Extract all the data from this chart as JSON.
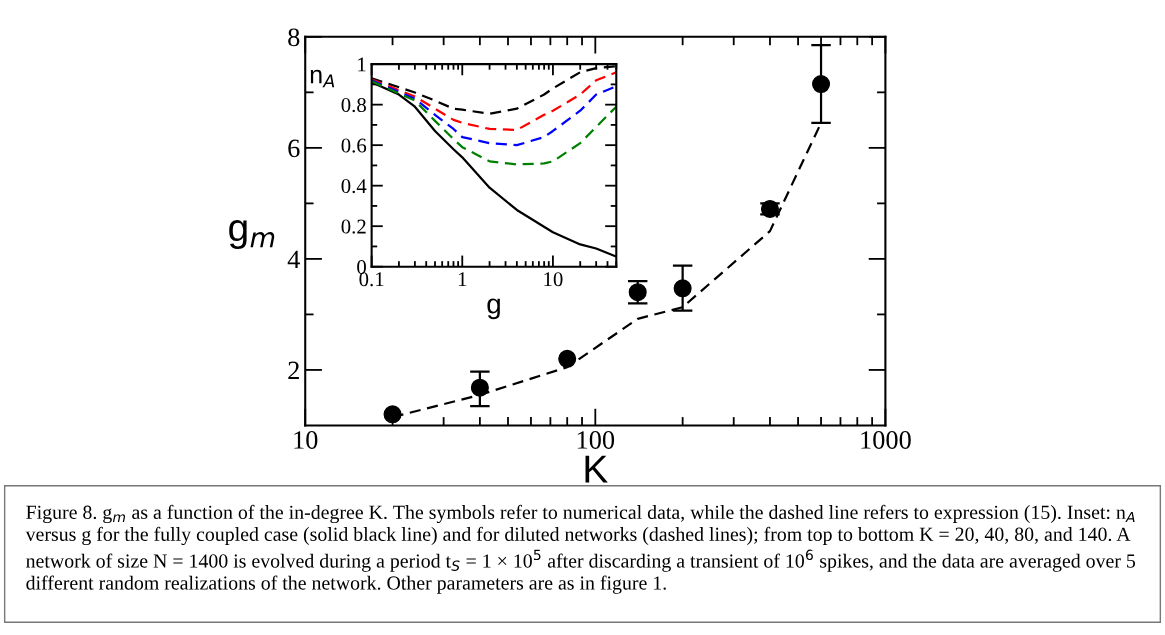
{
  "chart_data": [
    {
      "type": "line",
      "xlabel": "K",
      "ylabel": "g$_{m}$",
      "log": "x",
      "xlim": [
        10,
        1000
      ],
      "xticks": [
        10,
        100,
        1000
      ],
      "ylim": [
        1,
        8
      ],
      "yticks": [
        {
          "value": 2,
          "label": "2"
        },
        {
          "value": 3,
          "label": null
        },
        {
          "value": 4,
          "label": "4"
        },
        {
          "value": 5,
          "label": null
        },
        {
          "value": 6,
          "label": "6"
        },
        {
          "value": 7,
          "label": null
        },
        {
          "value": 8,
          "label": "8"
        }
      ],
      "grid": false,
      "legend": false,
      "series": [
        {
          "type": "scatter",
          "color": "#000000",
          "marker": "circle",
          "x": [
            20,
            40,
            80,
            140,
            200,
            400,
            600
          ],
          "values": [
            1.2,
            1.68,
            2.2,
            3.4,
            3.47,
            4.9,
            7.15
          ],
          "errors": [
            null,
            [
              1.35,
              1.97
            ],
            null,
            [
              3.2,
              3.6
            ],
            [
              3.07,
              3.88
            ],
            [
              4.8,
              5.0
            ],
            [
              6.45,
              7.85
            ]
          ]
        },
        {
          "type": "line",
          "color": "#000000",
          "line_style": "dashed",
          "marker": "none",
          "x": [
            20,
            40,
            80,
            140,
            200,
            400,
            600
          ],
          "values": [
            1.15,
            1.55,
            2.05,
            2.92,
            3.13,
            4.5,
            6.45
          ]
        }
      ],
      "annotations": [
        "Figure 8. g$_{m}$ as a function of the in-degree K. The symbols refer to numerical data, while the dashed line refers to expression (15). Inset: n$_{A}$ versus g for the fully coupled case (solid black line) and for diluted networks (dashed lines); from top to bottom K = 20, 40, 80, and 140. A network of size N = 1400 is evolved during a period t$_{S}$ = 1 × 10$^{5}$ after discarding a transient of 10$^{6}$ spikes, and the data are averaged over 5 different random realizations of the network. Other parameters are as in figure 1."
      ]
    },
    {
      "type": "line",
      "xlabel": "g",
      "ylabel": "n$_{A}$",
      "log": "x",
      "xlim": [
        0.1,
        50
      ],
      "xticks": [
        0.1,
        1,
        10
      ],
      "ylim": [
        0,
        1
      ],
      "yticks": [
        0,
        {
          "value": 0.1,
          "label": null
        },
        0.2,
        {
          "value": 0.3,
          "label": null
        },
        0.4,
        {
          "value": 0.5,
          "label": null
        },
        0.6,
        {
          "value": 0.7,
          "label": null
        },
        0.8,
        {
          "value": 0.9,
          "label": null
        },
        1
      ],
      "grid": false,
      "legend": false,
      "marker": "none",
      "series": [
        {
          "color": "#000000",
          "line_style": "solid",
          "x": [
            0.1,
            0.2,
            0.3,
            0.5,
            0.8,
            1,
            2,
            4,
            10,
            20,
            30,
            50
          ],
          "values": [
            0.91,
            0.85,
            0.79,
            0.67,
            0.58,
            0.54,
            0.39,
            0.28,
            0.17,
            0.11,
            0.09,
            0.05
          ]
        },
        {
          "color": "#000000",
          "line_style": "dashed",
          "x": [
            0.1,
            0.3,
            0.5,
            0.8,
            1,
            2,
            4,
            8,
            10,
            20,
            30,
            50
          ],
          "values": [
            0.93,
            0.86,
            0.82,
            0.78,
            0.775,
            0.755,
            0.78,
            0.85,
            0.88,
            0.96,
            0.98,
            0.99
          ]
        },
        {
          "color": "#ff0000",
          "line_style": "dashed",
          "x": [
            0.1,
            0.3,
            0.5,
            0.8,
            1,
            2,
            4,
            8,
            10,
            20,
            30,
            50
          ],
          "values": [
            0.925,
            0.84,
            0.78,
            0.725,
            0.71,
            0.68,
            0.675,
            0.75,
            0.77,
            0.85,
            0.92,
            0.96
          ]
        },
        {
          "color": "#0000ff",
          "line_style": "dashed",
          "x": [
            0.1,
            0.3,
            0.5,
            0.8,
            1,
            2,
            4,
            8,
            10,
            20,
            30,
            50
          ],
          "values": [
            0.92,
            0.83,
            0.75,
            0.68,
            0.64,
            0.61,
            0.6,
            0.64,
            0.67,
            0.77,
            0.85,
            0.89
          ]
        },
        {
          "color": "#008000",
          "line_style": "dashed",
          "x": [
            0.1,
            0.3,
            0.5,
            0.8,
            1,
            2,
            4,
            8,
            10,
            20,
            30,
            50
          ],
          "values": [
            0.915,
            0.82,
            0.72,
            0.63,
            0.59,
            0.52,
            0.505,
            0.51,
            0.52,
            0.61,
            0.69,
            0.79
          ]
        }
      ]
    }
  ]
}
